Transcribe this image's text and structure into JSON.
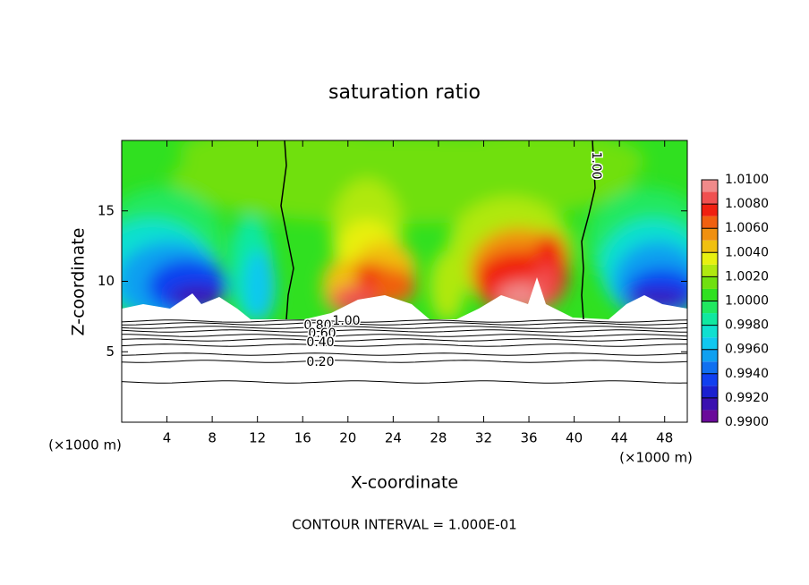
{
  "chart_data": {
    "type": "contour",
    "title": "saturation ratio",
    "xlabel": "X-coordinate",
    "ylabel": "Z-coordinate",
    "x_unit_left": "(×1000 m)",
    "x_unit_right": "(×1000 m)",
    "footer": "CONTOUR INTERVAL = 1.000E-01",
    "xlim": [
      0,
      50
    ],
    "xticks": [
      4,
      8,
      12,
      16,
      20,
      24,
      28,
      32,
      36,
      40,
      44,
      48
    ],
    "ylim": [
      0,
      20
    ],
    "yticks": [
      5,
      10,
      15
    ],
    "clim": [
      0.99,
      1.01
    ],
    "colors": [
      "#6a0a9a",
      "#3a10b0",
      "#1a20d0",
      "#1040f0",
      "#1070f0",
      "#10a0f0",
      "#10c8f0",
      "#10e0d0",
      "#10e8a0",
      "#20e860",
      "#30e020",
      "#70e010",
      "#b0e810",
      "#e8f010",
      "#f0c010",
      "#f09010",
      "#f06010",
      "#f02010",
      "#f05050",
      "#f08a8a"
    ],
    "cticks": [
      {
        "value": 0.99,
        "label": "0.9900"
      },
      {
        "value": 0.992,
        "label": "0.9920"
      },
      {
        "value": 0.994,
        "label": "0.9940"
      },
      {
        "value": 0.996,
        "label": "0.9960"
      },
      {
        "value": 0.998,
        "label": "0.9980"
      },
      {
        "value": 1.0,
        "label": "1.0000"
      },
      {
        "value": 1.002,
        "label": "1.0020"
      },
      {
        "value": 1.004,
        "label": "1.0040"
      },
      {
        "value": 1.006,
        "label": "1.0060"
      },
      {
        "value": 1.008,
        "label": "1.0080"
      },
      {
        "value": 1.01,
        "label": "1.0100"
      }
    ],
    "contour_levels": [
      0.1,
      0.2,
      0.3,
      0.4,
      0.5,
      0.6,
      0.7,
      0.8,
      0.9,
      1.0
    ],
    "contour_labels": [
      {
        "value": 1.0,
        "label": "1.00"
      },
      {
        "value": 1.0,
        "label": "1.00"
      },
      {
        "value": 0.8,
        "label": "0.80"
      },
      {
        "value": 0.6,
        "label": "0.60"
      },
      {
        "value": 0.4,
        "label": "0.40"
      },
      {
        "value": 0.2,
        "label": "0.20"
      }
    ]
  }
}
